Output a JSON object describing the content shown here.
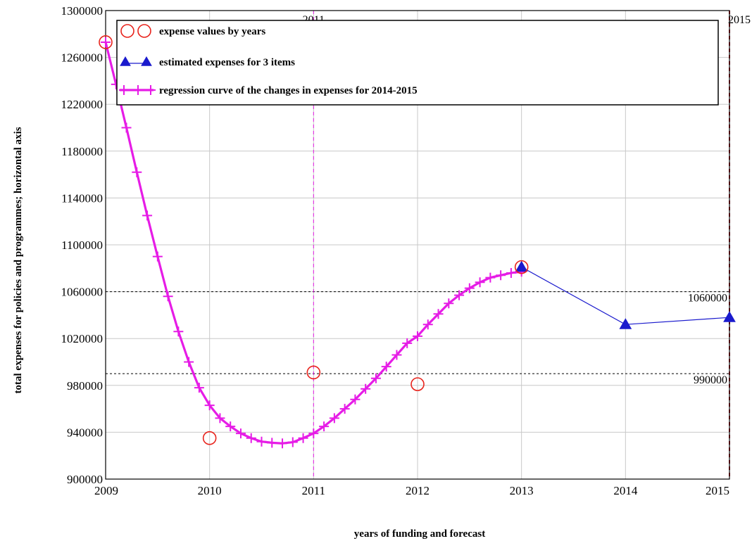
{
  "chart_data": {
    "type": "line",
    "xlabel": "years of funding and forecast",
    "ylabel": "total expenses for policies and programmes; horizontal axis",
    "xlim": [
      2009,
      2015
    ],
    "ylim": [
      900000,
      1300000
    ],
    "x_ticks": [
      "2009",
      "2010",
      "2011",
      "2012",
      "2013",
      "2014",
      "2015"
    ],
    "y_ticks": [
      "900000",
      "940000",
      "980000",
      "1020000",
      "1060000",
      "1100000",
      "1140000",
      "1180000",
      "1220000",
      "1260000",
      "1300000"
    ],
    "grid": true,
    "legend_position": "top",
    "series": [
      {
        "name": "expense values by years",
        "marker": "circle",
        "color": "#e8231c",
        "points": [
          {
            "x": 2009,
            "y": 1273000
          },
          {
            "x": 2010,
            "y": 935000
          },
          {
            "x": 2011,
            "y": 991000
          },
          {
            "x": 2012,
            "y": 981000
          },
          {
            "x": 2013,
            "y": 1081000
          }
        ]
      },
      {
        "name": "estimated expenses for 3 items",
        "marker": "triangle",
        "color": "#1a1acd",
        "points": [
          {
            "x": 2013,
            "y": 1081000
          },
          {
            "x": 2014,
            "y": 1032000
          },
          {
            "x": 2015,
            "y": 1038000
          }
        ]
      },
      {
        "name": "regression curve of the changes in expenses for 2014-2015",
        "marker": "cross",
        "color": "#e61ce6",
        "points": [
          {
            "x": 2009.0,
            "y": 1273000
          },
          {
            "x": 2009.1,
            "y": 1237000
          },
          {
            "x": 2009.2,
            "y": 1200000
          },
          {
            "x": 2009.3,
            "y": 1162000
          },
          {
            "x": 2009.4,
            "y": 1125000
          },
          {
            "x": 2009.5,
            "y": 1090000
          },
          {
            "x": 2009.6,
            "y": 1056000
          },
          {
            "x": 2009.7,
            "y": 1026000
          },
          {
            "x": 2009.8,
            "y": 1000000
          },
          {
            "x": 2009.9,
            "y": 978000
          },
          {
            "x": 2010.0,
            "y": 963000
          },
          {
            "x": 2010.1,
            "y": 952000
          },
          {
            "x": 2010.2,
            "y": 945000
          },
          {
            "x": 2010.3,
            "y": 939000
          },
          {
            "x": 2010.4,
            "y": 935000
          },
          {
            "x": 2010.5,
            "y": 932000
          },
          {
            "x": 2010.6,
            "y": 931000
          },
          {
            "x": 2010.7,
            "y": 930500
          },
          {
            "x": 2010.8,
            "y": 931500
          },
          {
            "x": 2010.9,
            "y": 935000
          },
          {
            "x": 2011.0,
            "y": 939000
          },
          {
            "x": 2011.1,
            "y": 945000
          },
          {
            "x": 2011.2,
            "y": 952000
          },
          {
            "x": 2011.3,
            "y": 960000
          },
          {
            "x": 2011.4,
            "y": 968000
          },
          {
            "x": 2011.5,
            "y": 977000
          },
          {
            "x": 2011.6,
            "y": 986000
          },
          {
            "x": 2011.7,
            "y": 996000
          },
          {
            "x": 2011.8,
            "y": 1006000
          },
          {
            "x": 2011.9,
            "y": 1016000
          },
          {
            "x": 2012.0,
            "y": 1022000
          },
          {
            "x": 2012.1,
            "y": 1032000
          },
          {
            "x": 2012.2,
            "y": 1041000
          },
          {
            "x": 2012.3,
            "y": 1050000
          },
          {
            "x": 2012.4,
            "y": 1057000
          },
          {
            "x": 2012.5,
            "y": 1063000
          },
          {
            "x": 2012.6,
            "y": 1068000
          },
          {
            "x": 2012.7,
            "y": 1072000
          },
          {
            "x": 2012.8,
            "y": 1074000
          },
          {
            "x": 2012.9,
            "y": 1076000
          },
          {
            "x": 2013.0,
            "y": 1077000
          }
        ]
      }
    ],
    "reference_lines": [
      {
        "orientation": "horizontal",
        "value": 1060000,
        "label": "1060000",
        "style": "dotted",
        "color": "#000000"
      },
      {
        "orientation": "horizontal",
        "value": 990000,
        "label": "990000",
        "style": "dotted",
        "color": "#000000"
      },
      {
        "orientation": "vertical",
        "value": 2011,
        "label": "2011",
        "style": "dashed",
        "color": "#e61ce6"
      },
      {
        "orientation": "vertical",
        "value": 2015,
        "label": "2015",
        "style": "dashed",
        "color": "#c0152b"
      }
    ]
  }
}
